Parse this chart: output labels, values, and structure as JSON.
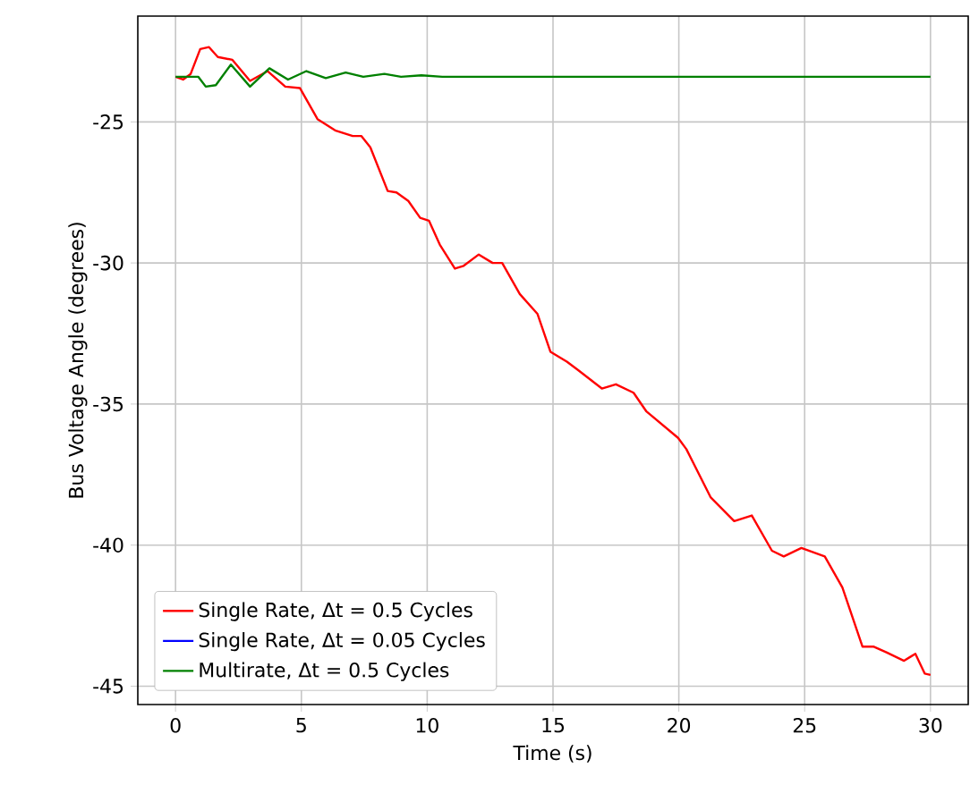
{
  "chart_data": {
    "type": "line",
    "xlabel": "Time (s)",
    "ylabel": "Bus Voltage Angle (degrees)",
    "xlim": [
      -1.5,
      31.5
    ],
    "ylim": [
      -45.65,
      -21.25
    ],
    "xticks": [
      0,
      5,
      10,
      15,
      20,
      25,
      30
    ],
    "yticks": [
      -45,
      -40,
      -35,
      -30,
      -25
    ],
    "grid": true,
    "legend": "bottom left",
    "line_style": "solid",
    "marker": "none",
    "series": [
      {
        "name": "Single Rate, Δt = 0.5 Cycles",
        "color": "#ff0000",
        "x": [
          0,
          0.3,
          0.6,
          0.98,
          1.33,
          1.68,
          2.26,
          2.96,
          3.66,
          4.36,
          4.94,
          5.64,
          6.34,
          7.04,
          7.38,
          7.74,
          8.43,
          8.78,
          9.25,
          9.72,
          10.07,
          10.5,
          11.1,
          11.45,
          12.05,
          12.6,
          12.98,
          13.68,
          14.38,
          14.9,
          15.55,
          16.0,
          16.94,
          17.5,
          18.2,
          18.7,
          19.97,
          20.3,
          21.26,
          22.2,
          22.9,
          23.7,
          24.17,
          24.87,
          25.8,
          26.5,
          27.3,
          27.75,
          28.25,
          28.95,
          29.4,
          29.77,
          30
        ],
        "values": [
          -23.4,
          -23.5,
          -23.3,
          -22.42,
          -22.35,
          -22.7,
          -22.8,
          -23.55,
          -23.2,
          -23.75,
          -23.8,
          -24.9,
          -25.3,
          -25.5,
          -25.5,
          -25.9,
          -27.45,
          -27.5,
          -27.8,
          -28.4,
          -28.5,
          -29.35,
          -30.2,
          -30.1,
          -29.7,
          -30.0,
          -30.0,
          -31.1,
          -31.8,
          -33.15,
          -33.5,
          -33.8,
          -34.45,
          -34.3,
          -34.6,
          -35.25,
          -36.2,
          -36.6,
          -38.3,
          -39.15,
          -38.95,
          -40.2,
          -40.4,
          -40.1,
          -40.4,
          -41.5,
          -43.6,
          -43.6,
          -43.8,
          -44.1,
          -43.85,
          -44.55,
          -44.6
        ]
      },
      {
        "name": "Single Rate, Δt = 0.05 Cycles",
        "color": "#0000ff"
      },
      {
        "name": "Multirate, Δt = 0.5 Cycles",
        "color": "#008000",
        "x": [
          0,
          0.9,
          1.2,
          1.6,
          2.2,
          2.96,
          3.73,
          4.47,
          5.2,
          5.97,
          6.76,
          7.46,
          8.3,
          8.96,
          9.77,
          10.6,
          12,
          30
        ],
        "values": [
          -23.4,
          -23.4,
          -23.75,
          -23.7,
          -22.97,
          -23.75,
          -23.1,
          -23.5,
          -23.2,
          -23.45,
          -23.25,
          -23.4,
          -23.3,
          -23.4,
          -23.35,
          -23.4,
          -23.4,
          -23.4
        ]
      }
    ]
  }
}
